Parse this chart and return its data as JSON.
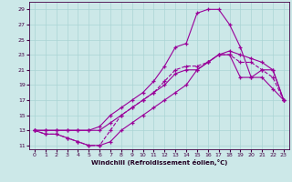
{
  "xlabel": "Windchill (Refroidissement éolien,°C)",
  "bg_color": "#cce8e8",
  "grid_color": "#aad4d4",
  "line_color": "#990099",
  "xlim": [
    -0.5,
    23.5
  ],
  "ylim": [
    10.5,
    30.0
  ],
  "yticks": [
    11,
    13,
    15,
    17,
    19,
    21,
    23,
    25,
    27,
    29
  ],
  "xticks": [
    0,
    1,
    2,
    3,
    4,
    5,
    6,
    7,
    8,
    9,
    10,
    11,
    12,
    13,
    14,
    15,
    16,
    17,
    18,
    19,
    20,
    21,
    22,
    23
  ],
  "curves": [
    {
      "x": [
        0,
        1,
        2,
        3,
        4,
        5,
        6,
        7,
        8,
        9,
        10,
        11,
        12,
        13,
        14,
        15,
        16,
        17,
        18,
        19,
        20,
        21,
        22,
        23
      ],
      "y": [
        13,
        12.5,
        12.5,
        12,
        11.5,
        11,
        11,
        11.5,
        13,
        14,
        15,
        16,
        17,
        18,
        19,
        21,
        22,
        23,
        23,
        20,
        20,
        21,
        21,
        17
      ],
      "ls": "-"
    },
    {
      "x": [
        0,
        1,
        2,
        3,
        4,
        5,
        6,
        7,
        8,
        9,
        10,
        11,
        12,
        13,
        14,
        15,
        16,
        17,
        18,
        19,
        20,
        21,
        22,
        23
      ],
      "y": [
        13,
        12.5,
        12.5,
        12,
        11.5,
        11,
        11,
        13,
        15,
        16,
        17,
        18,
        19.5,
        21,
        21.5,
        21.5,
        22,
        23,
        23,
        22,
        22,
        21,
        20,
        17
      ],
      "ls": "--"
    },
    {
      "x": [
        0,
        1,
        2,
        3,
        4,
        5,
        6,
        7,
        8,
        9,
        10,
        11,
        12,
        13,
        14,
        15,
        16,
        17,
        18,
        19,
        20,
        21,
        22,
        23
      ],
      "y": [
        13,
        13,
        13,
        13,
        13,
        13,
        13,
        14,
        15,
        16,
        17,
        18,
        19,
        20.5,
        21,
        21,
        22,
        23,
        23.5,
        23,
        22.5,
        22,
        21,
        17
      ],
      "ls": "-"
    },
    {
      "x": [
        0,
        1,
        2,
        3,
        4,
        5,
        6,
        7,
        8,
        9,
        10,
        11,
        12,
        13,
        14,
        15,
        16,
        17,
        18,
        19,
        20,
        21,
        22,
        23
      ],
      "y": [
        13,
        13,
        13,
        13,
        13,
        13,
        13.5,
        15,
        16,
        17,
        18,
        19.5,
        21.5,
        24,
        24.5,
        28.5,
        29,
        29,
        27,
        24,
        20,
        20,
        18.5,
        17
      ],
      "ls": "-"
    }
  ]
}
